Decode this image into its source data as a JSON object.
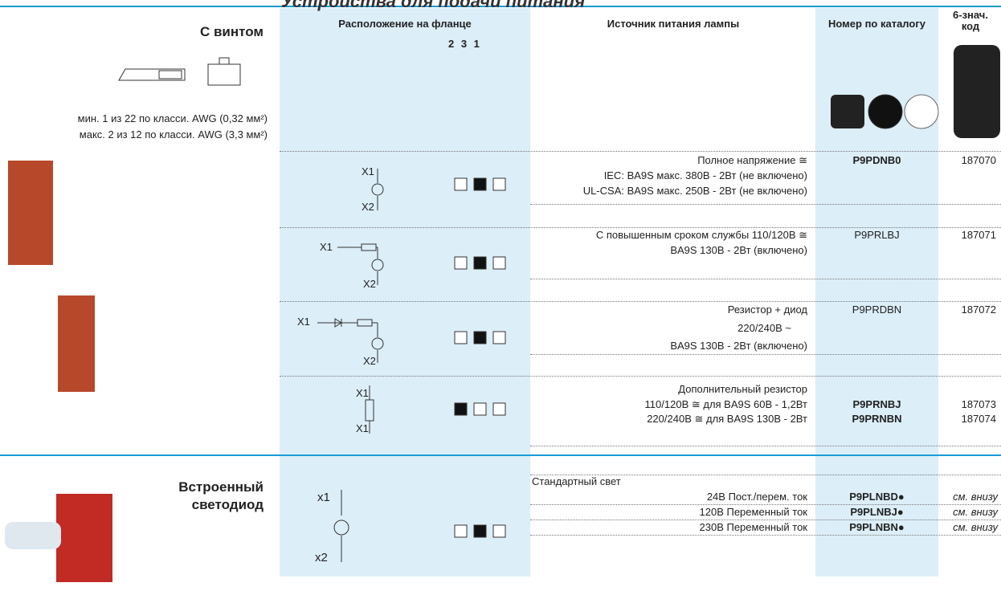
{
  "header": {
    "title": "Устройства для подачи питания"
  },
  "columns": {
    "position": "Расположение на фланце",
    "position_order": "2 3 1",
    "source": "Источник питания лампы",
    "catalog": "Номер по каталогу",
    "code": [
      "6-знач.",
      "код"
    ]
  },
  "sections": [
    {
      "title": "С винтом",
      "notes": [
        "мин. 1 из 22 по класси. AWG (0,32 мм²)",
        "макс. 2 из 12 по класси. AWG (3,3 мм²)"
      ],
      "rows": [
        {
          "diagram": [
            "X1",
            "X2"
          ],
          "source": [
            "Полное напряжение ≅",
            "IEC: BA9S макс. 380В - 2Вт (не включено)",
            "UL-CSA: BA9S макс. 250В - 2Вт (не включено)"
          ],
          "catalog": [
            "P9PDNB0"
          ],
          "code": [
            "187070"
          ]
        },
        {
          "diagram": [
            "X1",
            "X2"
          ],
          "source": [
            "С повышенным сроком службы 110/120В ≅",
            "BA9S 130B - 2Вт (включено)"
          ],
          "catalog": [
            "P9PRLBJ"
          ],
          "code": [
            "187071"
          ]
        },
        {
          "diagram": [
            "X1",
            "X2"
          ],
          "source": [
            "Резистор + диод",
            "220/240В ~",
            "BA9S 130B - 2Вт (включено)"
          ],
          "catalog": [
            "P9PRDBN"
          ],
          "code": [
            "187072"
          ]
        },
        {
          "diagram": [
            "X1",
            "X1"
          ],
          "source": [
            "Дополнительный резистор",
            "110/120В ≅ для BA9S 60В - 1,2Вт",
            "220/240В ≅ для BA9S 130В - 2Вт"
          ],
          "catalog": [
            "P9PRNBJ",
            "P9PRNBN"
          ],
          "code": [
            "187073",
            "187074"
          ]
        }
      ]
    },
    {
      "title": [
        "Встроенный",
        "светодиод"
      ],
      "diagram": [
        "x1",
        "x2"
      ],
      "source_heading": "Стандартный свет",
      "rows": [
        {
          "source": "24В Пост./перем. ток",
          "catalog": "P9PLNBD●",
          "code": "см. внизу"
        },
        {
          "source": "120В Переменный ток",
          "catalog": "P9PLNBJ●",
          "code": "см. внизу"
        },
        {
          "source": "230В Переменный ток",
          "catalog": "P9PLNBN●",
          "code": "см. внизу"
        }
      ]
    }
  ]
}
